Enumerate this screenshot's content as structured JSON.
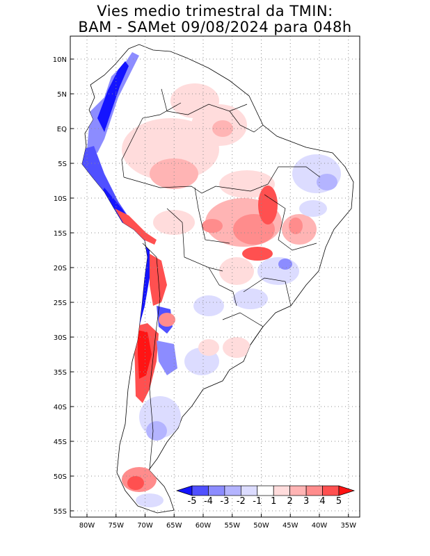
{
  "title": {
    "line1": "Vies medio trimestral da TMIN:",
    "line2": "BAM - SAMet 09/08/2024  para 048h"
  },
  "axes": {
    "lat_labels": [
      "10N",
      "5N",
      "EQ",
      "5S",
      "10S",
      "15S",
      "20S",
      "25S",
      "30S",
      "35S",
      "40S",
      "45S",
      "50S",
      "55S"
    ],
    "lat_values": [
      10,
      5,
      0,
      -5,
      -10,
      -15,
      -20,
      -25,
      -30,
      -35,
      -40,
      -45,
      -50,
      -55
    ],
    "lon_labels": [
      "80W",
      "75W",
      "70W",
      "65W",
      "60W",
      "55W",
      "50W",
      "45W",
      "40W",
      "35W"
    ],
    "lon_values": [
      -80,
      -75,
      -70,
      -65,
      -60,
      -55,
      -50,
      -45,
      -40,
      -35
    ],
    "lon_range": [
      -83,
      -35
    ],
    "lat_range": [
      -56,
      13
    ],
    "grid": true
  },
  "colorbar": {
    "labels": [
      "-5",
      "-4",
      "-3",
      "-2",
      "-1",
      "1",
      "2",
      "3",
      "4",
      "5"
    ],
    "colors": [
      "#1414ff",
      "#5050ff",
      "#8c8cff",
      "#b4b4ff",
      "#dcdcff",
      "#ffffff",
      "#ffdcdc",
      "#ffb4b4",
      "#ff8c8c",
      "#ff5050",
      "#ff1414"
    ]
  },
  "colors": {
    "land_pink": "#ffdcdc",
    "land_white": "#ffffff",
    "blue_strong": "#1414ff",
    "red_strong": "#ff1414"
  }
}
